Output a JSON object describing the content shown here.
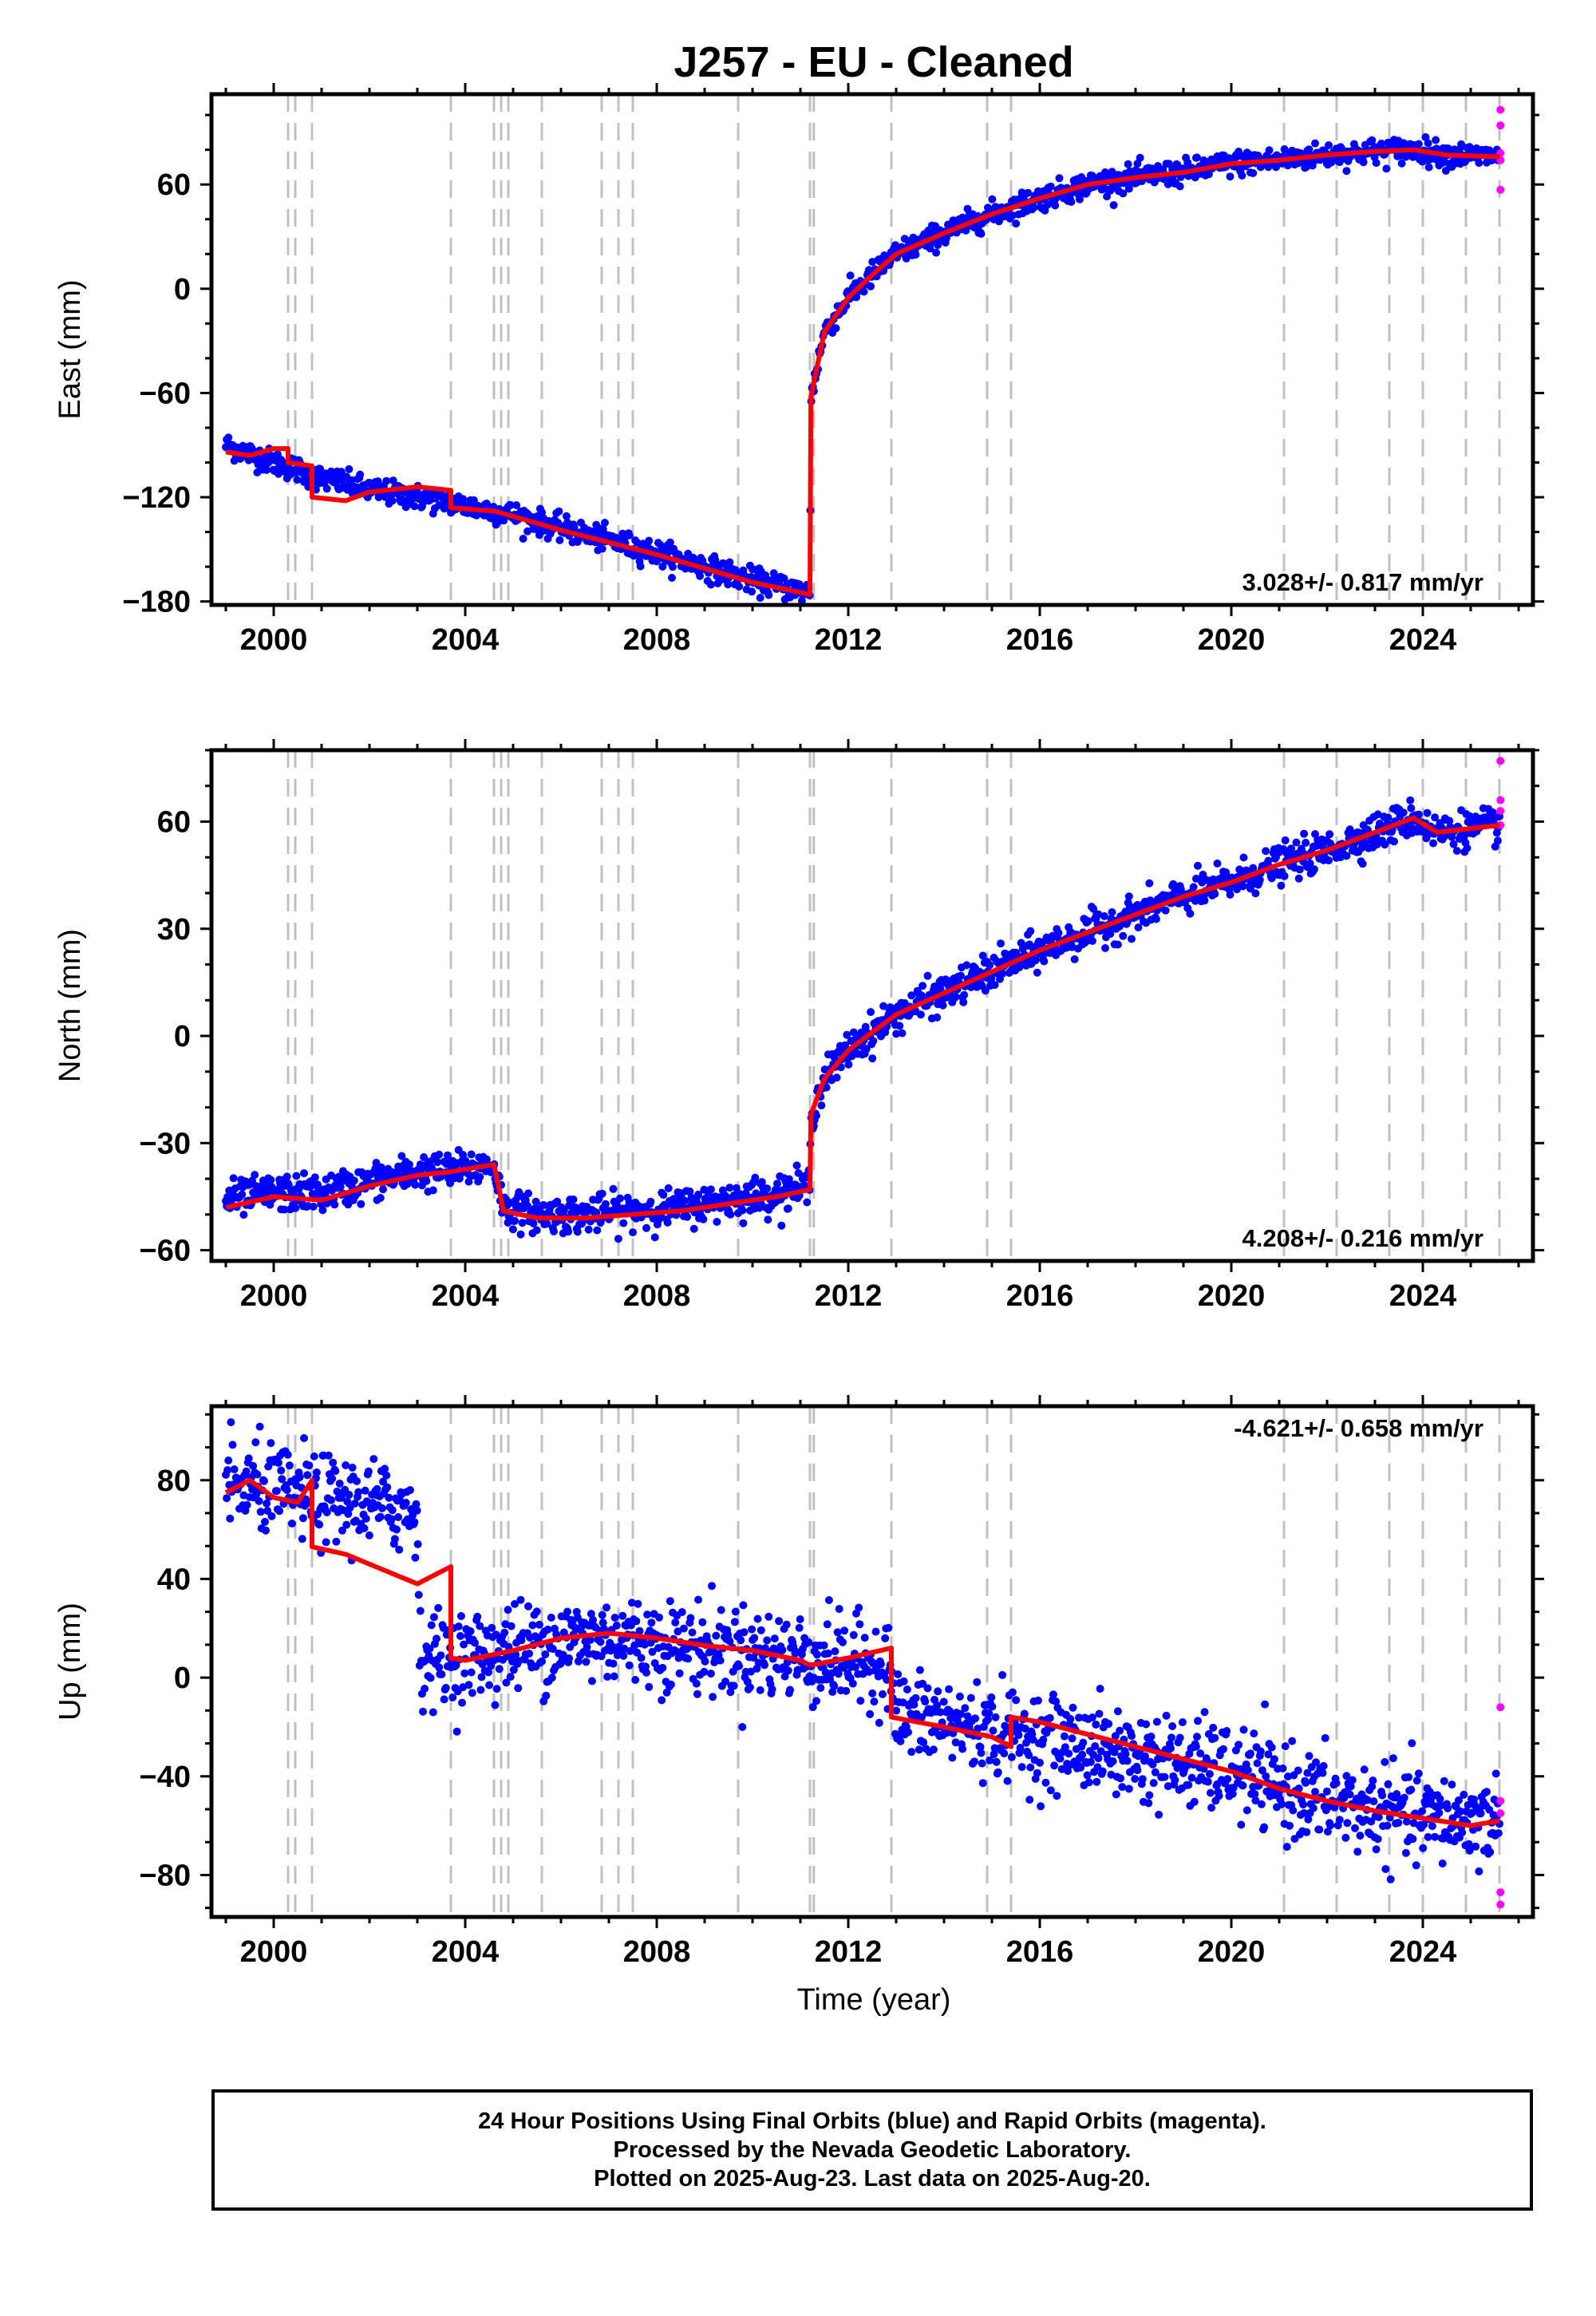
{
  "title": "J257  - EU - Cleaned",
  "xlabel": "Time (year)",
  "colors": {
    "final_orbits": "#0000ff",
    "rapid_orbits": "#ff00ff",
    "model": "#ff0000",
    "event_lines": "#c0c0c0"
  },
  "footer": {
    "line1": "24 Hour Positions Using Final Orbits (blue) and Rapid Orbits (magenta).",
    "line2": "Processed by the Nevada Geodetic Laboratory.",
    "line3": "Plotted on 2025-Aug-23. Last data on 2025-Aug-20."
  },
  "chart_data": [
    {
      "type": "scatter",
      "ylabel": "East (mm)",
      "rate_label": "3.028+/- 0.817 mm/yr",
      "xlim": [
        1998.7,
        2026.3
      ],
      "ylim": [
        -182,
        112
      ],
      "xticks": [
        2000,
        2004,
        2008,
        2012,
        2016,
        2020,
        2024
      ],
      "yticks": [
        -180,
        -120,
        -60,
        0,
        60
      ],
      "event_lines": [
        2000.3,
        2000.45,
        2000.8,
        2003.7,
        2004.6,
        2004.75,
        2004.9,
        2005.6,
        2006.85,
        2007.2,
        2007.5,
        2009.7,
        2011.2,
        2011.28,
        2012.9,
        2014.9,
        2015.4,
        2021.1,
        2022.2,
        2023.3,
        2024.0,
        2024.9,
        2025.6
      ],
      "series": [
        {
          "name": "Final Orbits",
          "kind": "points",
          "noise": 3.5,
          "x": [
            1999.0,
            1999.5,
            2000.0,
            2000.5,
            2000.8,
            2001.5,
            2002.0,
            2003.0,
            2003.7,
            2004.0,
            2005.0,
            2006.0,
            2007.0,
            2008.0,
            2009.0,
            2010.0,
            2011.2,
            2011.22,
            2011.5,
            2012.0,
            2012.5,
            2013.0,
            2014.0,
            2015.0,
            2016.0,
            2017.0,
            2018.0,
            2019.0,
            2020.0,
            2021.0,
            2022.0,
            2023.0,
            2023.8,
            2024.5,
            2025.6
          ],
          "y": [
            -90,
            -95,
            -100,
            -104,
            -108,
            -112,
            -116,
            -120,
            -123,
            -125,
            -130,
            -138,
            -145,
            -152,
            -160,
            -168,
            -175,
            -62,
            -25,
            -5,
            8,
            20,
            32,
            43,
            52,
            60,
            64,
            67,
            72,
            74,
            77,
            79,
            80,
            77,
            76
          ]
        },
        {
          "name": "Rapid Orbits",
          "kind": "points",
          "noise": 0,
          "x": [
            2025.62,
            2025.62,
            2025.62,
            2025.62,
            2025.62
          ],
          "y": [
            103,
            94,
            78,
            74,
            57
          ]
        },
        {
          "name": "Model",
          "kind": "line",
          "x": [
            1999.0,
            1999.5,
            2000.0,
            2000.3,
            2000.3,
            2000.8,
            2000.8,
            2001.5,
            2002.0,
            2003.0,
            2003.7,
            2003.7,
            2004.6,
            2005.0,
            2006.0,
            2007.0,
            2008.0,
            2009.0,
            2010.0,
            2011.2,
            2011.2,
            2011.22,
            2011.5,
            2012.0,
            2012.5,
            2013.0,
            2014.0,
            2015.0,
            2016.0,
            2017.0,
            2018.0,
            2019.0,
            2020.0,
            2021.0,
            2022.0,
            2023.0,
            2023.8,
            2024.5,
            2025.6
          ],
          "y": [
            -94,
            -96,
            -92,
            -92,
            -100,
            -102,
            -120,
            -122,
            -117,
            -114,
            -116,
            -126,
            -128,
            -131,
            -139,
            -146,
            -153,
            -161,
            -169,
            -176,
            -176,
            -62,
            -25,
            -5,
            8,
            20,
            32,
            43,
            52,
            60,
            64,
            67,
            72,
            74,
            77,
            79,
            80,
            77,
            76
          ]
        }
      ]
    },
    {
      "type": "scatter",
      "ylabel": "North (mm)",
      "rate_label": "4.208+/- 0.216 mm/yr",
      "xlim": [
        1998.7,
        2026.3
      ],
      "ylim": [
        -63,
        80
      ],
      "xticks": [
        2000,
        2004,
        2008,
        2012,
        2016,
        2020,
        2024
      ],
      "yticks": [
        -60,
        -30,
        0,
        30,
        60
      ],
      "event_lines": [
        2000.3,
        2000.45,
        2000.8,
        2003.7,
        2004.6,
        2004.75,
        2004.9,
        2005.6,
        2006.85,
        2007.2,
        2007.5,
        2009.7,
        2011.2,
        2011.28,
        2012.9,
        2014.9,
        2015.4,
        2021.1,
        2022.2,
        2023.3,
        2024.0,
        2024.9,
        2025.6
      ],
      "series": [
        {
          "name": "Final Orbits",
          "kind": "points",
          "noise": 2.5,
          "x": [
            1999.0,
            2000.0,
            2001.0,
            2002.0,
            2003.0,
            2003.7,
            2004.6,
            2004.8,
            2005.5,
            2006.5,
            2007.5,
            2008.5,
            2009.5,
            2010.5,
            2011.2,
            2011.22,
            2011.5,
            2012.0,
            2013.0,
            2014.0,
            2015.0,
            2016.0,
            2017.0,
            2018.0,
            2019.0,
            2020.0,
            2021.0,
            2022.0,
            2023.0,
            2023.8,
            2024.3,
            2025.6
          ],
          "y": [
            -46,
            -44,
            -44,
            -41,
            -38,
            -38,
            -36,
            -48,
            -50,
            -50,
            -49,
            -48,
            -46,
            -44,
            -42,
            -22,
            -12,
            -4,
            6,
            12,
            18,
            24,
            29,
            34,
            39,
            43,
            48,
            52,
            57,
            61,
            57,
            59
          ]
        },
        {
          "name": "Rapid Orbits",
          "kind": "points",
          "noise": 0,
          "x": [
            2025.62,
            2025.62,
            2025.62,
            2025.62
          ],
          "y": [
            77,
            66,
            63,
            59
          ]
        },
        {
          "name": "Model",
          "kind": "line",
          "x": [
            1999.0,
            2000.0,
            2001.0,
            2002.0,
            2003.0,
            2003.7,
            2004.6,
            2004.8,
            2005.5,
            2006.5,
            2007.5,
            2008.5,
            2009.5,
            2010.5,
            2011.2,
            2011.2,
            2011.22,
            2011.5,
            2012.0,
            2013.0,
            2014.0,
            2015.0,
            2016.0,
            2017.0,
            2018.0,
            2019.0,
            2020.0,
            2021.0,
            2022.0,
            2023.0,
            2023.8,
            2024.3,
            2025.6
          ],
          "y": [
            -48,
            -45,
            -46,
            -42,
            -39,
            -38,
            -36,
            -49,
            -51,
            -51,
            -50,
            -49,
            -47,
            -45,
            -43,
            -43,
            -22,
            -12,
            -4,
            6,
            12,
            18,
            24,
            29,
            34,
            39,
            43,
            48,
            52,
            57,
            61,
            57,
            59
          ]
        }
      ]
    },
    {
      "type": "scatter",
      "ylabel": "Up (mm)",
      "rate_label": "-4.621+/- 0.658 mm/yr",
      "xlim": [
        1998.7,
        2026.3
      ],
      "ylim": [
        -97,
        110
      ],
      "xticks": [
        2000,
        2004,
        2008,
        2012,
        2016,
        2020,
        2024
      ],
      "yticks": [
        -80,
        -40,
        0,
        40,
        80
      ],
      "event_lines": [
        2000.3,
        2000.45,
        2000.8,
        2003.7,
        2004.6,
        2004.75,
        2004.9,
        2005.6,
        2006.85,
        2007.2,
        2007.5,
        2009.7,
        2011.2,
        2011.28,
        2012.9,
        2014.9,
        2015.4,
        2021.1,
        2022.2,
        2023.3,
        2024.0,
        2024.9,
        2025.6
      ],
      "series": [
        {
          "name": "Final Orbits",
          "kind": "points",
          "noise": 9,
          "x": [
            1999.0,
            2000.0,
            2001.0,
            2002.0,
            2003.0,
            2003.05,
            2004.0,
            2005.0,
            2006.0,
            2007.0,
            2008.0,
            2009.0,
            2010.0,
            2011.0,
            2012.0,
            2012.9,
            2012.95,
            2014.0,
            2015.0,
            2016.0,
            2017.0,
            2018.0,
            2019.0,
            2020.0,
            2021.0,
            2022.0,
            2023.0,
            2024.0,
            2025.6
          ],
          "y": [
            78,
            76,
            72,
            70,
            68,
            8,
            8,
            12,
            15,
            16,
            14,
            12,
            10,
            8,
            6,
            6,
            -15,
            -18,
            -22,
            -25,
            -28,
            -32,
            -35,
            -38,
            -45,
            -50,
            -54,
            -57,
            -58
          ]
        },
        {
          "name": "Rapid Orbits",
          "kind": "points",
          "noise": 0,
          "x": [
            2025.62,
            2025.62,
            2025.62,
            2025.62,
            2025.62
          ],
          "y": [
            -12,
            -50,
            -55,
            -87,
            -92
          ]
        },
        {
          "name": "Model",
          "kind": "line",
          "x": [
            1999.0,
            1999.5,
            2000.0,
            2000.5,
            2000.8,
            2000.8,
            2001.5,
            2002.0,
            2003.0,
            2003.7,
            2003.7,
            2004.0,
            2005.0,
            2006.0,
            2007.0,
            2008.0,
            2009.0,
            2010.0,
            2011.0,
            2011.2,
            2012.0,
            2012.9,
            2012.9,
            2014.0,
            2015.0,
            2015.4,
            2015.4,
            2016.0,
            2017.0,
            2018.0,
            2019.0,
            2020.0,
            2021.0,
            2022.0,
            2023.0,
            2024.0,
            2025.0,
            2025.6
          ],
          "y": [
            75,
            80,
            73,
            71,
            80,
            53,
            50,
            46,
            38,
            45,
            8,
            7,
            11,
            16,
            18,
            16,
            13,
            11,
            7,
            5,
            8,
            12,
            -16,
            -20,
            -24,
            -28,
            -16,
            -18,
            -23,
            -28,
            -33,
            -38,
            -45,
            -50,
            -54,
            -57,
            -60,
            -58
          ]
        }
      ]
    }
  ]
}
